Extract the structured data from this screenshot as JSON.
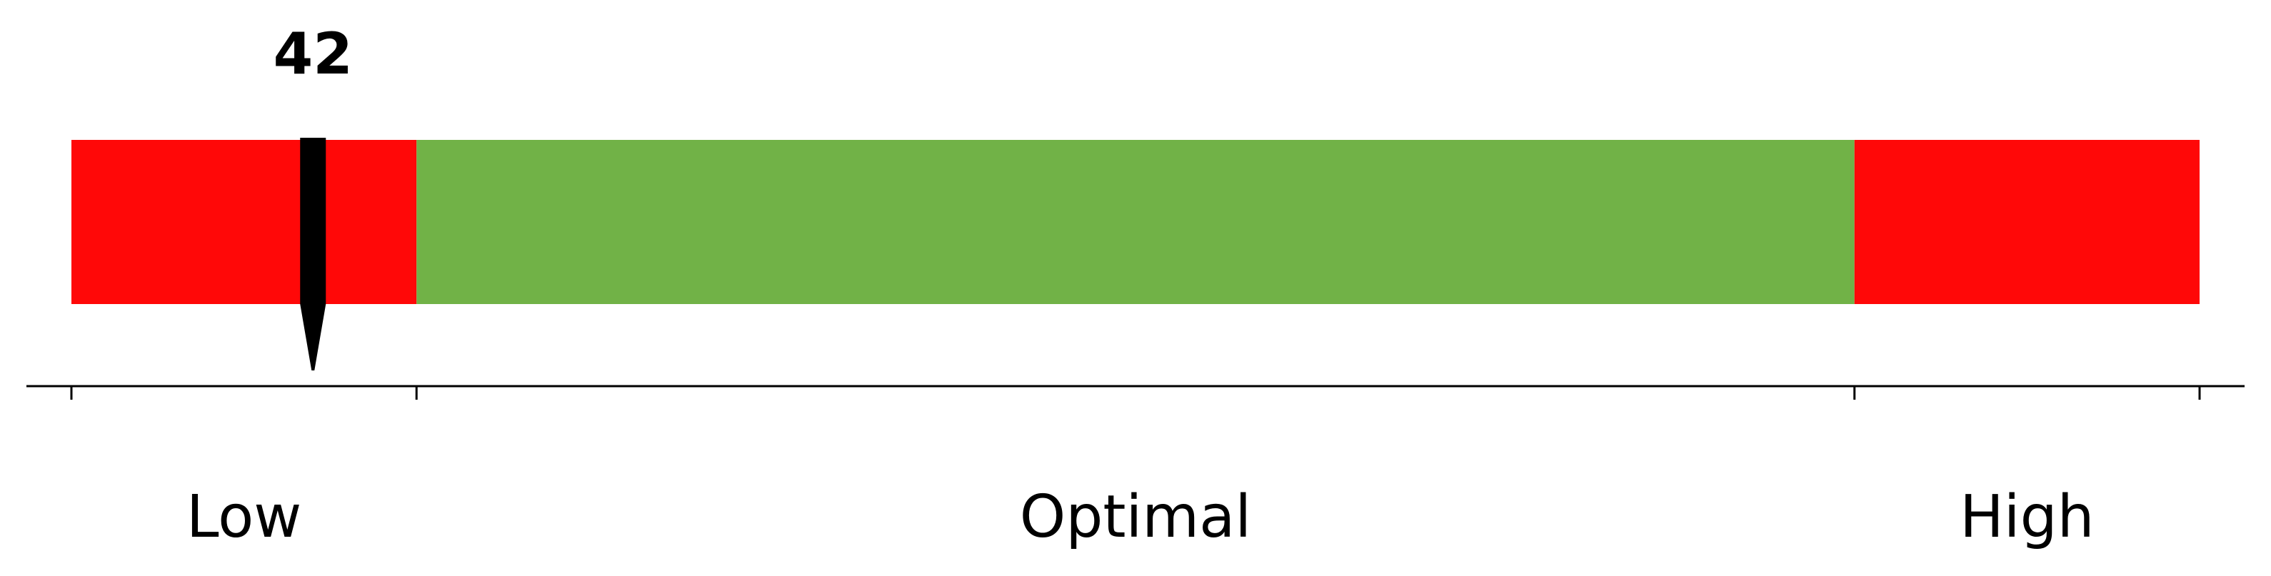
{
  "chart_data": {
    "type": "bar",
    "subtype": "bullet-gauge",
    "title": "",
    "xlabel": "",
    "ylabel": "",
    "value": 42,
    "value_label": "42",
    "xlim": [
      0,
      370
    ],
    "grid": false,
    "legend": "none",
    "ranges": [
      {
        "label": "Low",
        "start": 0,
        "end": 60,
        "color": "#ff0808"
      },
      {
        "label": "Optimal",
        "start": 60,
        "end": 310,
        "color": "#71b247"
      },
      {
        "label": "High",
        "start": 310,
        "end": 370,
        "color": "#ff0808"
      }
    ],
    "tick_values": [
      0,
      60,
      310,
      370
    ],
    "pointer_color": "#000000"
  }
}
